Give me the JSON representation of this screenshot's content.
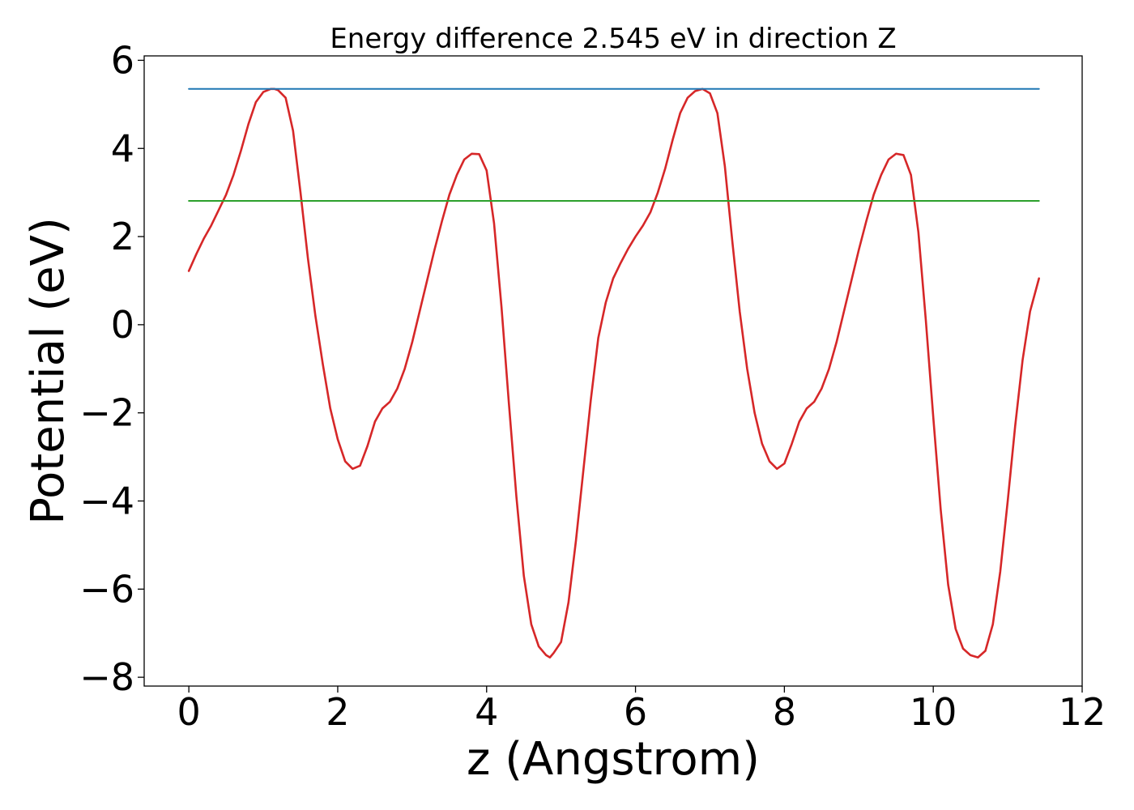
{
  "chart_data": {
    "type": "line",
    "title": "Energy difference 2.545 eV in direction Z",
    "xlabel": "z (Angstrom)",
    "ylabel": "Potential (eV)",
    "xlim": [
      -0.6,
      12
    ],
    "ylim": [
      -8.2,
      6.1
    ],
    "xticks": [
      0,
      2,
      4,
      6,
      8,
      10,
      12
    ],
    "yticks": [
      -8,
      -6,
      -4,
      -2,
      0,
      2,
      4,
      6
    ],
    "xtick_labels": [
      "0",
      "2",
      "4",
      "6",
      "8",
      "10",
      "12"
    ],
    "ytick_labels": [
      "−8",
      "−6",
      "−4",
      "−2",
      "0",
      "2",
      "4",
      "6"
    ],
    "grid": false,
    "legend": "none",
    "series": [
      {
        "color": "#d62728",
        "points": [
          [
            0.0,
            1.22
          ],
          [
            0.1,
            1.6
          ],
          [
            0.2,
            1.95
          ],
          [
            0.3,
            2.25
          ],
          [
            0.4,
            2.6
          ],
          [
            0.5,
            2.95
          ],
          [
            0.6,
            3.4
          ],
          [
            0.7,
            3.95
          ],
          [
            0.8,
            4.55
          ],
          [
            0.9,
            5.05
          ],
          [
            1.0,
            5.28
          ],
          [
            1.1,
            5.35
          ],
          [
            1.15,
            5.35
          ],
          [
            1.2,
            5.32
          ],
          [
            1.3,
            5.15
          ],
          [
            1.4,
            4.4
          ],
          [
            1.5,
            3.0
          ],
          [
            1.6,
            1.5
          ],
          [
            1.7,
            0.2
          ],
          [
            1.8,
            -0.9
          ],
          [
            1.9,
            -1.9
          ],
          [
            2.0,
            -2.6
          ],
          [
            2.1,
            -3.1
          ],
          [
            2.2,
            -3.27
          ],
          [
            2.3,
            -3.2
          ],
          [
            2.4,
            -2.75
          ],
          [
            2.5,
            -2.2
          ],
          [
            2.6,
            -1.9
          ],
          [
            2.7,
            -1.75
          ],
          [
            2.8,
            -1.45
          ],
          [
            2.9,
            -1.0
          ],
          [
            3.0,
            -0.4
          ],
          [
            3.1,
            0.3
          ],
          [
            3.2,
            1.0
          ],
          [
            3.3,
            1.7
          ],
          [
            3.4,
            2.35
          ],
          [
            3.5,
            2.95
          ],
          [
            3.6,
            3.4
          ],
          [
            3.7,
            3.75
          ],
          [
            3.8,
            3.88
          ],
          [
            3.9,
            3.87
          ],
          [
            4.0,
            3.5
          ],
          [
            4.1,
            2.3
          ],
          [
            4.2,
            0.4
          ],
          [
            4.3,
            -1.8
          ],
          [
            4.4,
            -3.9
          ],
          [
            4.5,
            -5.7
          ],
          [
            4.6,
            -6.8
          ],
          [
            4.7,
            -7.3
          ],
          [
            4.8,
            -7.5
          ],
          [
            4.85,
            -7.55
          ],
          [
            4.9,
            -7.45
          ],
          [
            5.0,
            -7.2
          ],
          [
            5.1,
            -6.3
          ],
          [
            5.2,
            -4.9
          ],
          [
            5.3,
            -3.3
          ],
          [
            5.4,
            -1.7
          ],
          [
            5.5,
            -0.3
          ],
          [
            5.6,
            0.5
          ],
          [
            5.7,
            1.05
          ],
          [
            5.8,
            1.4
          ],
          [
            5.9,
            1.72
          ],
          [
            6.0,
            2.0
          ],
          [
            6.1,
            2.25
          ],
          [
            6.2,
            2.55
          ],
          [
            6.3,
            3.0
          ],
          [
            6.4,
            3.55
          ],
          [
            6.5,
            4.2
          ],
          [
            6.6,
            4.8
          ],
          [
            6.7,
            5.15
          ],
          [
            6.8,
            5.3
          ],
          [
            6.9,
            5.35
          ],
          [
            7.0,
            5.25
          ],
          [
            7.1,
            4.8
          ],
          [
            7.2,
            3.6
          ],
          [
            7.3,
            1.9
          ],
          [
            7.4,
            0.3
          ],
          [
            7.5,
            -1.0
          ],
          [
            7.6,
            -2.0
          ],
          [
            7.7,
            -2.7
          ],
          [
            7.8,
            -3.1
          ],
          [
            7.9,
            -3.27
          ],
          [
            8.0,
            -3.15
          ],
          [
            8.1,
            -2.7
          ],
          [
            8.2,
            -2.2
          ],
          [
            8.3,
            -1.9
          ],
          [
            8.4,
            -1.75
          ],
          [
            8.5,
            -1.45
          ],
          [
            8.6,
            -1.0
          ],
          [
            8.7,
            -0.4
          ],
          [
            8.8,
            0.3
          ],
          [
            8.9,
            1.0
          ],
          [
            9.0,
            1.7
          ],
          [
            9.1,
            2.35
          ],
          [
            9.2,
            2.95
          ],
          [
            9.3,
            3.4
          ],
          [
            9.4,
            3.75
          ],
          [
            9.5,
            3.88
          ],
          [
            9.6,
            3.85
          ],
          [
            9.7,
            3.4
          ],
          [
            9.8,
            2.1
          ],
          [
            9.9,
            0.1
          ],
          [
            10.0,
            -2.1
          ],
          [
            10.1,
            -4.2
          ],
          [
            10.2,
            -5.9
          ],
          [
            10.3,
            -6.9
          ],
          [
            10.4,
            -7.35
          ],
          [
            10.5,
            -7.5
          ],
          [
            10.6,
            -7.55
          ],
          [
            10.7,
            -7.4
          ],
          [
            10.8,
            -6.8
          ],
          [
            10.9,
            -5.6
          ],
          [
            11.0,
            -4.0
          ],
          [
            11.1,
            -2.3
          ],
          [
            11.2,
            -0.8
          ],
          [
            11.3,
            0.3
          ],
          [
            11.42,
            1.05
          ]
        ]
      },
      {
        "color": "#1f77b4",
        "points": [
          [
            0.0,
            5.35
          ],
          [
            11.42,
            5.35
          ]
        ]
      },
      {
        "color": "#2ca02c",
        "points": [
          [
            0.0,
            2.81
          ],
          [
            11.42,
            2.81
          ]
        ]
      }
    ]
  }
}
